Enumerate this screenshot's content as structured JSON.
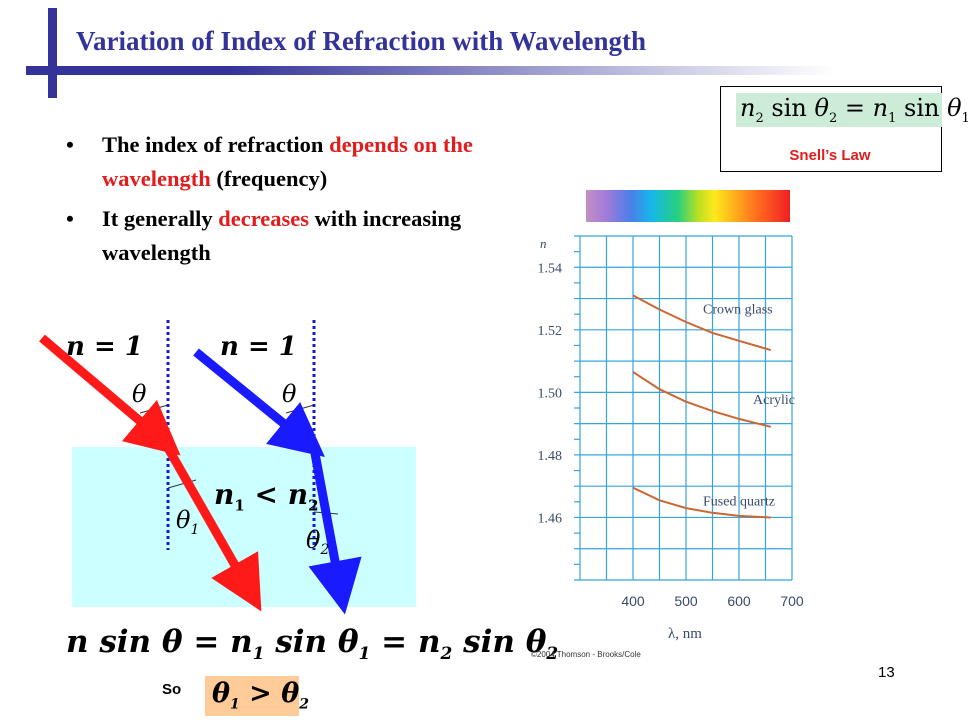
{
  "slide": {
    "title": "Variation of Index of Refraction with Wavelength",
    "page_number": "13"
  },
  "bullets": [
    {
      "marker": "•",
      "parts": [
        "The index of refraction ",
        "depends on the wavelength",
        " (frequency)"
      ]
    },
    {
      "marker": "•",
      "parts": [
        "It generally ",
        "decreases",
        " with increasing wavelength"
      ]
    }
  ],
  "snell": {
    "equation": {
      "lhs_n": "n",
      "lhs_sub": "2",
      "lhs_fn": "sin",
      "lhs_theta": "θ",
      "lhs_theta_sub": "2",
      "eq": "=",
      "rhs_n": "n",
      "rhs_sub": "1",
      "rhs_fn": "sin",
      "rhs_theta": "θ",
      "rhs_theta_sub": "1"
    },
    "label": "Snell’s Law"
  },
  "diagram": {
    "left": {
      "n_label": "n = 1",
      "theta": "θ",
      "theta_refr": "θ",
      "theta_refr_sub": "1",
      "ray_color": "#ff1a1a"
    },
    "right": {
      "n_label": "n = 1",
      "theta": "θ",
      "theta_refr": "θ",
      "theta_refr_sub": "2",
      "ray_color": "#1a1aff"
    },
    "medium_relation": {
      "a": "n",
      "a_sub": "1",
      "op": "<",
      "b": "n",
      "b_sub": "2"
    }
  },
  "bottom": {
    "equation": {
      "p1": "n sin θ = n",
      "s1": "1",
      "p2": " sin θ",
      "s2": "1",
      "p3": " = n",
      "s3": "2",
      "p4": " sin θ",
      "s4": "2"
    },
    "so": "So",
    "inequality": {
      "a": "θ",
      "a_sub": "1",
      "op": ">",
      "b": "θ",
      "b_sub": "2"
    }
  },
  "figure_credit": "©2004 Thomson - Brooks/Cole",
  "chart_data": {
    "type": "line",
    "xlabel": "λ, nm",
    "ylabel": "n",
    "xlim": [
      300,
      700
    ],
    "ylim": [
      1.44,
      1.55
    ],
    "x_ticks": [
      "400",
      "500",
      "600",
      "700"
    ],
    "y_ticks": [
      "1.54",
      "1.52",
      "1.50",
      "1.48",
      "1.46"
    ],
    "grid": true,
    "series": [
      {
        "name": "Crown glass",
        "x": [
          400,
          450,
          500,
          550,
          600,
          660
        ],
        "y": [
          1.531,
          1.5265,
          1.5225,
          1.519,
          1.5165,
          1.5135
        ]
      },
      {
        "name": "Acrylic",
        "x": [
          400,
          450,
          500,
          550,
          600,
          660
        ],
        "y": [
          1.5065,
          1.501,
          1.497,
          1.494,
          1.4915,
          1.489
        ]
      },
      {
        "name": "Fused quartz",
        "x": [
          400,
          450,
          500,
          550,
          600,
          660
        ],
        "y": [
          1.4695,
          1.4655,
          1.463,
          1.4615,
          1.4605,
          1.46
        ]
      }
    ],
    "colors": {
      "grid": "#33a4dd",
      "curve": "#cc6633",
      "text": "#3a4a6a"
    }
  }
}
